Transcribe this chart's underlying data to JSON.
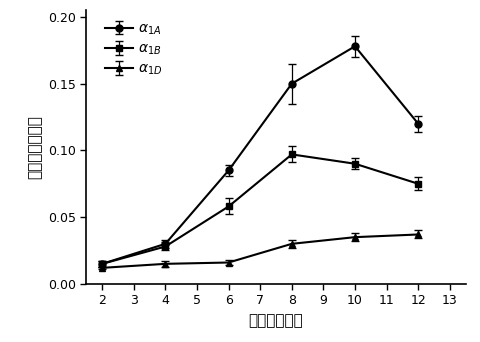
{
  "x": [
    2,
    4,
    6,
    8,
    10,
    12
  ],
  "alpha1A_y": [
    0.015,
    0.03,
    0.085,
    0.15,
    0.178,
    0.12
  ],
  "alpha1A_err": [
    0.002,
    0.003,
    0.004,
    0.015,
    0.008,
    0.006
  ],
  "alpha1B_y": [
    0.015,
    0.028,
    0.058,
    0.097,
    0.09,
    0.075
  ],
  "alpha1B_err": [
    0.002,
    0.003,
    0.006,
    0.006,
    0.004,
    0.005
  ],
  "alpha1D_y": [
    0.012,
    0.015,
    0.016,
    0.03,
    0.035,
    0.037
  ],
  "alpha1D_err": [
    0.001,
    0.002,
    0.002,
    0.003,
    0.003,
    0.003
  ],
  "xlabel": "时间（小时）",
  "ylabel": "相对荧光诱导值",
  "xlim": [
    1.5,
    13.5
  ],
  "ylim": [
    0.0,
    0.205
  ],
  "xticks": [
    2,
    3,
    4,
    5,
    6,
    7,
    8,
    9,
    10,
    11,
    12,
    13
  ],
  "yticks": [
    0.0,
    0.05,
    0.1,
    0.15,
    0.2
  ],
  "color": "#000000",
  "linewidth": 1.5,
  "markersize": 5,
  "capsize": 3,
  "legend_fontsize": 10,
  "axis_fontsize": 11,
  "tick_fontsize": 9
}
